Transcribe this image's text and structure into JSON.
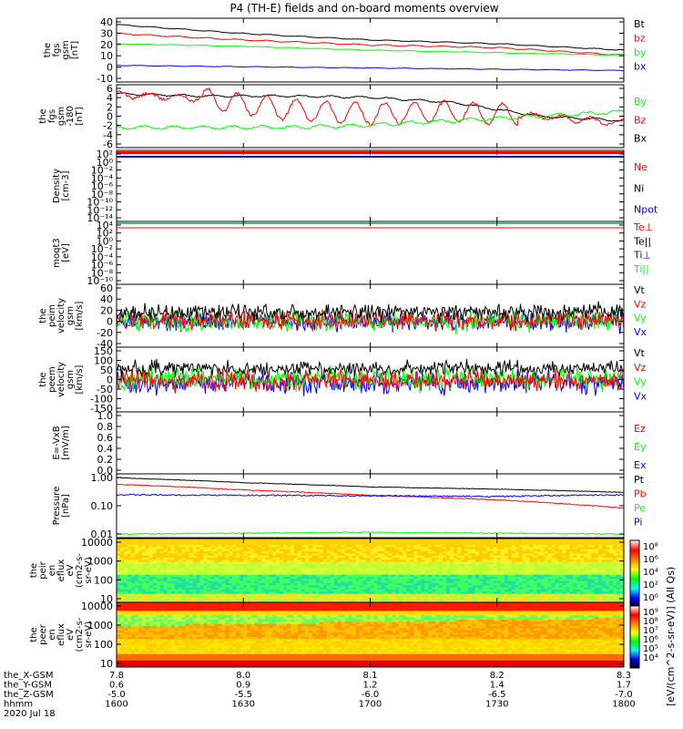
{
  "title": "P4 (TH-E) fields and on-board moments overview",
  "footer": {
    "rows": [
      {
        "label": "the_X-GSM",
        "values": [
          "7.8",
          "8.0",
          "8.1",
          "8.2",
          "8.3"
        ]
      },
      {
        "label": "the_Y-GSM",
        "values": [
          "0.6",
          "0.9",
          "1.2",
          "1.4",
          "1.7"
        ]
      },
      {
        "label": "the_Z-GSM",
        "values": [
          "-5.0",
          "-5.5",
          "-6.0",
          "-6.5",
          "-7.0"
        ]
      },
      {
        "label": "hhmm",
        "values": [
          "1600",
          "1630",
          "1700",
          "1730",
          "1800"
        ]
      }
    ],
    "date": "2020 Jul 18"
  },
  "colorbar": {
    "label": "[eV/(cm^2-s-sr-eV)] (All Qs)",
    "colors": [
      "#ffffff",
      "#ff0000",
      "#ff7f00",
      "#ffff00",
      "#00ff00",
      "#00ffff",
      "#0000ff",
      "#000000"
    ]
  },
  "colors": {
    "black": "#000000",
    "red": "#ff0000",
    "green": "#00ff00",
    "blue": "#0000ff"
  },
  "chart_data": [
    {
      "type": "line",
      "ylabel": [
        "the",
        "fgs",
        "gsm",
        "[nT]"
      ],
      "yticks": [
        "40",
        "30",
        "20",
        "10",
        "0",
        "-10"
      ],
      "ylim": [
        -10,
        40
      ],
      "legend": [
        {
          "name": "Bt",
          "color": "#000000"
        },
        {
          "name": "bz",
          "color": "#ff0000"
        },
        {
          "name": "by",
          "color": "#00ff00"
        },
        {
          "name": "bx",
          "color": "#0000ff"
        }
      ],
      "series": [
        {
          "name": "Bt",
          "color": "#000000",
          "x": [
            0,
            30,
            60,
            90,
            120
          ],
          "y": [
            35,
            28,
            23,
            20,
            15
          ],
          "wiggle": 0.6
        },
        {
          "name": "bz",
          "color": "#ff0000",
          "x": [
            0,
            30,
            60,
            90,
            120
          ],
          "y": [
            28,
            23,
            19,
            17,
            11
          ],
          "wiggle": 0.8
        },
        {
          "name": "by",
          "color": "#00ff00",
          "x": [
            0,
            30,
            60,
            90,
            120
          ],
          "y": [
            20,
            18,
            15,
            13,
            11
          ],
          "wiggle": 0.4
        },
        {
          "name": "bx",
          "color": "#0000ff",
          "x": [
            0,
            30,
            60,
            90,
            120
          ],
          "y": [
            3,
            2,
            1,
            0,
            -1
          ],
          "wiggle": 0.4
        }
      ]
    },
    {
      "type": "line",
      "ylabel": [
        "the",
        "fgs",
        "gsm",
        "-180",
        "[nT]"
      ],
      "yticks": [
        "6",
        "4",
        "2",
        "0",
        "-2",
        "-4",
        "-6"
      ],
      "ylim": [
        -7,
        7
      ],
      "legend": [
        {
          "name": "By",
          "color": "#00ff00"
        },
        {
          "name": "Bz",
          "color": "#ff0000"
        },
        {
          "name": "Bx",
          "color": "#000000"
        }
      ],
      "series": [
        {
          "name": "Bx",
          "color": "#000000",
          "x": [
            0,
            20,
            40,
            60,
            80,
            100,
            120
          ],
          "y": [
            5,
            4.5,
            4.5,
            4.2,
            3.0,
            0,
            -1
          ],
          "wiggle": 0.4
        },
        {
          "name": "Bz",
          "color": "#ff0000",
          "x": [
            0,
            20,
            40,
            60,
            80,
            100,
            120
          ],
          "y": [
            4.8,
            4.0,
            1.5,
            0.5,
            1.0,
            0,
            -1.5
          ],
          "wiggle": 1.3
        },
        {
          "name": "By",
          "color": "#00ff00",
          "x": [
            0,
            20,
            40,
            60,
            80,
            100,
            120
          ],
          "y": [
            -2.5,
            -2.5,
            -2.5,
            -2,
            -1,
            0,
            1
          ],
          "wiggle": 0.7
        }
      ]
    },
    {
      "type": "line",
      "ylabel": [
        "Density",
        "[cm-3]"
      ],
      "yticks": [
        "10²",
        "10⁰",
        "10⁻²",
        "10⁻⁴",
        "10⁻⁶",
        "10⁻⁸",
        "10⁻¹⁰",
        "10⁻¹²",
        "10⁻¹⁴"
      ],
      "legend": [
        {
          "name": "Ne",
          "color": "#ff0000"
        },
        {
          "name": "Ni",
          "color": "#000000"
        },
        {
          "name": "Npot",
          "color": "#0000ff"
        }
      ]
    },
    {
      "type": "line",
      "ylabel": [
        "moqt3",
        "[eV]"
      ],
      "yticks": [
        "10⁴",
        "10²",
        "10⁰",
        "10⁻²",
        "10⁻⁴",
        "10⁻⁶",
        "10⁻⁸",
        "10⁻¹⁰"
      ],
      "legend": [
        {
          "name": "Te⊥",
          "color": "#ff0000"
        },
        {
          "name": "Te||",
          "color": "#000000"
        },
        {
          "name": "Ti⊥",
          "color": "#0000ff"
        },
        {
          "name": "Ti||",
          "color": "#00ff00"
        }
      ]
    },
    {
      "type": "line",
      "ylabel": [
        "the",
        "peim",
        "velocity",
        "gsm",
        "[km/s]"
      ],
      "yticks": [
        "60",
        "40",
        "20",
        "0",
        "-20",
        "-40"
      ],
      "ylim": [
        -40,
        60
      ],
      "legend": [
        {
          "name": "Vt",
          "color": "#000000"
        },
        {
          "name": "Vz",
          "color": "#ff0000"
        },
        {
          "name": "Vy",
          "color": "#00ff00"
        },
        {
          "name": "Vx",
          "color": "#0000ff"
        }
      ],
      "series": [
        {
          "name": "Vx",
          "color": "#0000ff",
          "mean": 0,
          "noise": 9
        },
        {
          "name": "Vy",
          "color": "#00ff00",
          "mean": 2,
          "noise": 10
        },
        {
          "name": "Vz",
          "color": "#ff0000",
          "mean": 3,
          "noise": 9
        },
        {
          "name": "Vt",
          "color": "#000000",
          "mean": 16,
          "noise": 8
        }
      ]
    },
    {
      "type": "line",
      "ylabel": [
        "the",
        "peem",
        "velocity",
        "gsm",
        "[km/s]"
      ],
      "yticks": [
        "150",
        "100",
        "50",
        "0",
        "-50",
        "-100",
        "-150"
      ],
      "ylim": [
        -150,
        150
      ],
      "legend": [
        {
          "name": "Vt",
          "color": "#000000"
        },
        {
          "name": "Vz",
          "color": "#ff0000"
        },
        {
          "name": "Vy",
          "color": "#00ff00"
        },
        {
          "name": "Vx",
          "color": "#0000ff"
        }
      ],
      "series": [
        {
          "name": "Vx",
          "color": "#0000ff",
          "mean": -15,
          "noise": 30
        },
        {
          "name": "Vy",
          "color": "#00ff00",
          "mean": 5,
          "noise": 30
        },
        {
          "name": "Vt",
          "color": "#000000",
          "mean": 50,
          "noise": 22
        },
        {
          "name": "Vz",
          "color": "#ff0000",
          "mean": -5,
          "noise": 28
        }
      ]
    },
    {
      "type": "line",
      "ylabel": [
        "E=-VxB",
        "[mV/m]"
      ],
      "yticks": [
        "1.0",
        "0.8",
        "0.6",
        "0.4",
        "0.2",
        "0.0"
      ],
      "ylim": [
        0,
        1
      ],
      "legend": [
        {
          "name": "Ez",
          "color": "#ff0000"
        },
        {
          "name": "Ey",
          "color": "#00ff00"
        },
        {
          "name": "Ex",
          "color": "#0000ff"
        }
      ]
    },
    {
      "type": "line",
      "ylabel": [
        "Pressure",
        "[nPa]"
      ],
      "yticks": [
        "1.00",
        "0.10",
        "0.01"
      ],
      "yscale": "log",
      "ylim": [
        0.01,
        1.2
      ],
      "legend": [
        {
          "name": "Pt",
          "color": "#000000"
        },
        {
          "name": "Pb",
          "color": "#ff0000"
        },
        {
          "name": "Pe",
          "color": "#00ff00"
        },
        {
          "name": "Pi",
          "color": "#0000ff"
        }
      ],
      "series": [
        {
          "name": "Pt",
          "color": "#000000",
          "x": [
            0,
            30,
            60,
            90,
            120
          ],
          "y": [
            0.9,
            0.62,
            0.45,
            0.38,
            0.3
          ],
          "wiggle": 0.02
        },
        {
          "name": "Pb",
          "color": "#ff0000",
          "x": [
            0,
            30,
            60,
            90,
            120
          ],
          "y": [
            0.55,
            0.36,
            0.24,
            0.17,
            0.09
          ],
          "wiggle": 0.03
        },
        {
          "name": "Pi",
          "color": "#0000ff",
          "x": [
            0,
            30,
            60,
            90,
            120
          ],
          "y": [
            0.25,
            0.24,
            0.23,
            0.22,
            0.25
          ],
          "wiggle": 0.05
        },
        {
          "name": "Pe",
          "color": "#00ff00",
          "x": [
            0,
            30,
            60,
            90,
            120
          ],
          "y": [
            0.013,
            0.014,
            0.015,
            0.014,
            0.013
          ],
          "wiggle": 0.04
        }
      ]
    },
    {
      "type": "heatmap",
      "ylabel": [
        "the",
        "peir",
        "en",
        "eflux",
        "eV",
        "(cm2-s-",
        "sr-eV)"
      ],
      "yticks": [
        "10000",
        "1000",
        "100",
        "10"
      ],
      "yscale": "log",
      "colorbar_ticks": [
        "10⁸",
        "10⁶",
        "10⁴",
        "10²",
        "10⁰"
      ]
    },
    {
      "type": "heatmap",
      "ylabel": [
        "the",
        "peer",
        "en",
        "eflux",
        "eV",
        "(cm2-s-",
        "sr-eV)"
      ],
      "yticks": [
        "10000",
        "1000",
        "100",
        "10"
      ],
      "yscale": "log",
      "colorbar_ticks": [
        "10⁹",
        "10⁸",
        "10⁷",
        "10⁶",
        "10⁵",
        "10⁴"
      ]
    }
  ]
}
